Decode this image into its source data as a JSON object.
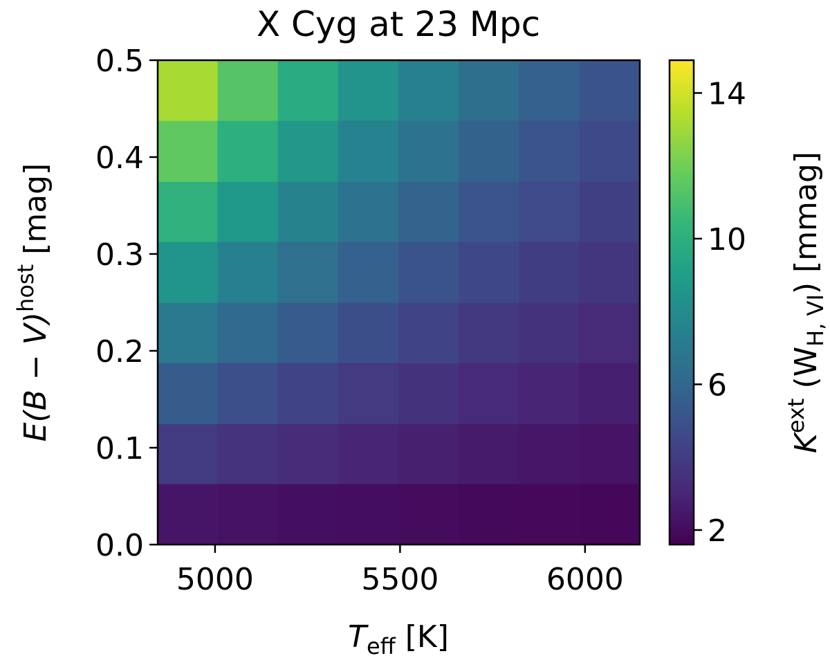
{
  "chart_data": {
    "type": "heatmap",
    "title": "X Cyg at 23 Mpc",
    "xlabel": [
      "T",
      "eff",
      " [K]"
    ],
    "ylabel": [
      "E(B − V)",
      "host",
      " [mag]"
    ],
    "colorbar_label": [
      "K",
      "ext",
      " (W",
      "H, VI",
      ") [mmag]"
    ],
    "x": [
      4926,
      5089,
      5252,
      5415,
      5578,
      5741,
      5904,
      6067
    ],
    "y": [
      0.031,
      0.094,
      0.156,
      0.219,
      0.281,
      0.344,
      0.406,
      0.469
    ],
    "z": [
      [
        2.36,
        2.24,
        2.14,
        2.05,
        1.98,
        1.92,
        1.87,
        1.83
      ],
      [
        3.91,
        3.55,
        3.24,
        2.97,
        2.76,
        2.57,
        2.42,
        2.29
      ],
      [
        5.44,
        4.83,
        4.31,
        3.88,
        3.52,
        3.21,
        2.96,
        2.74
      ],
      [
        6.99,
        6.13,
        5.41,
        4.8,
        4.29,
        3.86,
        3.51,
        3.2
      ],
      [
        8.51,
        7.42,
        6.49,
        5.7,
        5.06,
        4.49,
        4.04,
        3.65
      ],
      [
        10.06,
        8.72,
        7.59,
        6.62,
        5.83,
        5.14,
        4.59,
        4.11
      ],
      [
        11.59,
        10.0,
        8.66,
        7.53,
        6.59,
        5.78,
        5.13,
        4.56
      ],
      [
        13.14,
        11.31,
        9.76,
        8.45,
        7.37,
        6.43,
        5.68,
        5.02
      ]
    ],
    "xlim": [
      4845,
      6148
    ],
    "xticks": [
      5000,
      5500,
      6000
    ],
    "ylim": [
      0,
      0.5
    ],
    "yticks": [
      {
        "value": 0,
        "label": "0.0"
      },
      0.1,
      0.2,
      0.3,
      0.4,
      0.5
    ],
    "clim": [
      1.6,
      14.9
    ],
    "cticks": [
      2,
      6,
      10,
      14
    ],
    "colormap": "viridis"
  }
}
